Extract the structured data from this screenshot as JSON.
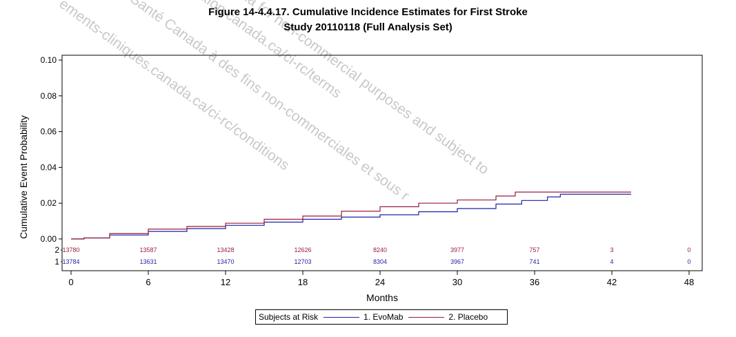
{
  "title_line1": "Figure 14-4.4.17.  Cumulative Incidence Estimates for First Stroke",
  "title_line2": "Study 20110118 (Full Analysis Set)",
  "watermark": {
    "line1": "ar Santé Canada à des fins non-commerciales et sous r",
    "line2": "ements-cliniques.canada.ca/ci-rc/conditions",
    "line3": "ation.canada.ca/ci-rc/terms",
    "line4": "Canada for non-commercial purposes and subject to"
  },
  "chart_data": {
    "type": "line",
    "title": "Figure 14-4.4.17.  Cumulative Incidence Estimates for First Stroke",
    "subtitle": "Study 20110118 (Full Analysis Set)",
    "xlabel": "Months",
    "ylabel": "Cumulative Event Probability",
    "xlim": [
      0,
      48
    ],
    "ylim": [
      0,
      0.1
    ],
    "xticks": [
      0,
      6,
      12,
      18,
      24,
      30,
      36,
      42,
      48
    ],
    "yticks": [
      "0.00",
      "0.02",
      "0.04",
      "0.06",
      "0.08",
      "0.10"
    ],
    "series": [
      {
        "name": "1. EvoMab",
        "color": "#1f1fa8",
        "x": [
          0,
          1,
          3,
          6,
          9,
          12,
          15,
          18,
          21,
          24,
          27,
          30,
          33,
          35,
          37,
          38,
          43.5
        ],
        "y": [
          0,
          0.0005,
          0.0022,
          0.0042,
          0.0058,
          0.0076,
          0.0094,
          0.011,
          0.0122,
          0.0135,
          0.0152,
          0.017,
          0.0195,
          0.0215,
          0.0235,
          0.025,
          0.025
        ]
      },
      {
        "name": "2. Placebo",
        "color": "#9a1c3a",
        "x": [
          0,
          1,
          3,
          6,
          9,
          12,
          15,
          18,
          21,
          24,
          27,
          30,
          33,
          34.5,
          36,
          43.5
        ],
        "y": [
          0,
          0.0006,
          0.003,
          0.0055,
          0.007,
          0.0088,
          0.011,
          0.0128,
          0.0155,
          0.018,
          0.02,
          0.0218,
          0.024,
          0.0262,
          0.0262,
          0.0262
        ]
      }
    ],
    "risk_table": {
      "row_labels": [
        "2",
        "1"
      ],
      "rows": [
        {
          "label": "2",
          "color": "#9a1c3a",
          "values": [
            "13780",
            "13587",
            "13428",
            "12626",
            "8240",
            "3977",
            "757",
            "3",
            "0"
          ]
        },
        {
          "label": "1",
          "color": "#1f1fa8",
          "values": [
            "13784",
            "13631",
            "13470",
            "12703",
            "8304",
            "3967",
            "741",
            "4",
            "0"
          ]
        }
      ]
    },
    "legend": {
      "title": "Subjects at Risk",
      "position": "bottom-center",
      "items": [
        "1. EvoMab",
        "2. Placebo"
      ]
    },
    "grid": false
  }
}
